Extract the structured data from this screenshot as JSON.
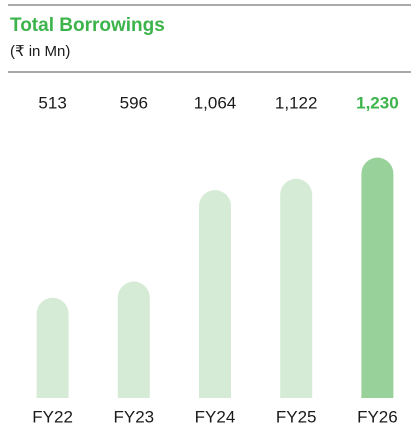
{
  "chart_data": {
    "type": "bar",
    "title": "Total Borrowings",
    "subtitle": "(₹ in Mn)",
    "categories": [
      "FY22",
      "FY23",
      "FY24",
      "FY25",
      "FY26"
    ],
    "values": [
      513,
      596,
      1064,
      1122,
      1230
    ],
    "value_labels": [
      "513",
      "596",
      "1,064",
      "1,122",
      "1,230"
    ],
    "colors": [
      "#d5ebd5",
      "#d5ebd5",
      "#d5ebd5",
      "#d5ebd5",
      "#99d19a"
    ],
    "label_colors": [
      "#1a1a1a",
      "#1a1a1a",
      "#1a1a1a",
      "#1a1a1a",
      "#3cb44b"
    ],
    "ylim": [
      0,
      1300
    ]
  }
}
